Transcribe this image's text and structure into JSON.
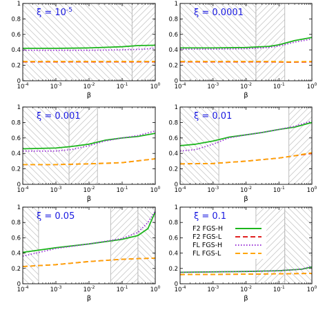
{
  "chart_data": [
    {
      "type": "line",
      "annotation": "ξ = 10",
      "annotation_exp": "-5",
      "xlabel": "β",
      "xscale": "log",
      "xlim": [
        0.0001,
        1
      ],
      "ylim": [
        0,
        1
      ],
      "x_ticks": [
        {
          "base": "10",
          "exp": "-4"
        },
        {
          "base": "10",
          "exp": "-3"
        },
        {
          "base": "10",
          "exp": "-2"
        },
        {
          "base": "10",
          "exp": "-1"
        },
        {
          "base": "10",
          "exp": "0"
        }
      ],
      "y_ticks": [
        "0",
        "0.2",
        "0.4",
        "0.6",
        "0.8",
        "1"
      ],
      "hatched_regions": [
        {
          "from": 0.0001,
          "to": 0.2,
          "direction": "backslash"
        },
        {
          "from": 0.2,
          "to": 1,
          "direction": "slash"
        }
      ],
      "series": [
        {
          "name": "F2 FGS-H",
          "color": "#1cb51c",
          "style": "solid",
          "x": [
            0.0001,
            0.001,
            0.01,
            0.1,
            0.3,
            1
          ],
          "y": [
            0.42,
            0.42,
            0.425,
            0.44,
            0.455,
            0.46
          ]
        },
        {
          "name": "F2 FGS-L",
          "color": "#e02020",
          "style": "dashed",
          "x": [
            0.0001,
            0.01,
            1
          ],
          "y": [
            0.245,
            0.245,
            0.245
          ]
        },
        {
          "name": "FL FGS-H",
          "color": "#9a33d6",
          "style": "dotted",
          "x": [
            0.0001,
            0.01,
            0.1,
            0.5,
            1
          ],
          "y": [
            0.395,
            0.395,
            0.4,
            0.41,
            0.425
          ]
        },
        {
          "name": "FL FGS-L",
          "color": "#ffa500",
          "style": "dashed",
          "x": [
            0.0001,
            0.01,
            1
          ],
          "y": [
            0.25,
            0.25,
            0.25
          ]
        }
      ]
    },
    {
      "type": "line",
      "annotation": "ξ = 0.0001",
      "xlabel": "β",
      "xscale": "log",
      "xlim": [
        0.0001,
        1
      ],
      "ylim": [
        0,
        1
      ],
      "x_ticks": [
        {
          "base": "10",
          "exp": "-4"
        },
        {
          "base": "10",
          "exp": "-3"
        },
        {
          "base": "10",
          "exp": "-2"
        },
        {
          "base": "10",
          "exp": "-1"
        },
        {
          "base": "10",
          "exp": "0"
        }
      ],
      "y_ticks": [
        "0",
        "0.2",
        "0.4",
        "0.6",
        "0.8",
        "1"
      ],
      "hatched_regions": [
        {
          "from": 0.0001,
          "to": 0.02,
          "direction": "backslash"
        },
        {
          "from": 0.02,
          "to": 0.15,
          "direction": "slash"
        }
      ],
      "series": [
        {
          "name": "F2 FGS-H",
          "color": "#1cb51c",
          "style": "solid",
          "x": [
            0.0001,
            0.001,
            0.01,
            0.05,
            0.1,
            0.3,
            1
          ],
          "y": [
            0.425,
            0.425,
            0.43,
            0.445,
            0.465,
            0.52,
            0.56
          ]
        },
        {
          "name": "F2 FGS-L",
          "color": "#e02020",
          "style": "dashed",
          "x": [
            0.0001,
            0.05,
            0.2,
            1
          ],
          "y": [
            0.245,
            0.245,
            0.24,
            0.245
          ]
        },
        {
          "name": "FL FGS-H",
          "color": "#9a33d6",
          "style": "dotted",
          "x": [
            0.0001,
            0.001,
            0.01,
            0.05,
            0.1,
            0.3,
            1
          ],
          "y": [
            0.41,
            0.41,
            0.415,
            0.43,
            0.45,
            0.5,
            0.54
          ]
        },
        {
          "name": "FL FGS-L",
          "color": "#ffa500",
          "style": "dashed",
          "x": [
            0.0001,
            0.05,
            0.2,
            1
          ],
          "y": [
            0.25,
            0.25,
            0.245,
            0.25
          ]
        }
      ]
    },
    {
      "type": "line",
      "annotation": "ξ = 0.001",
      "xlabel": "β",
      "xscale": "log",
      "xlim": [
        0.0001,
        1
      ],
      "ylim": [
        0,
        1
      ],
      "x_ticks": [
        {
          "base": "10",
          "exp": "-4"
        },
        {
          "base": "10",
          "exp": "-3"
        },
        {
          "base": "10",
          "exp": "-2"
        },
        {
          "base": "10",
          "exp": "-1"
        },
        {
          "base": "10",
          "exp": "0"
        }
      ],
      "y_ticks": [
        "0",
        "0.2",
        "0.4",
        "0.6",
        "0.8",
        "1"
      ],
      "hatched_regions": [
        {
          "from": 0.0001,
          "to": 0.0025,
          "direction": "backslash"
        },
        {
          "from": 0.0025,
          "to": 0.018,
          "direction": "slash"
        }
      ],
      "series": [
        {
          "name": "F2 FGS-H",
          "color": "#1cb51c",
          "style": "solid",
          "x": [
            0.0001,
            0.001,
            0.003,
            0.01,
            0.03,
            0.1,
            0.3,
            1
          ],
          "y": [
            0.46,
            0.47,
            0.49,
            0.52,
            0.57,
            0.6,
            0.62,
            0.66
          ]
        },
        {
          "name": "F2 FGS-L",
          "color": "#e02020",
          "style": "dashed",
          "x": [
            0.0001,
            0.001,
            0.01,
            0.1,
            1
          ],
          "y": [
            0.255,
            0.255,
            0.265,
            0.28,
            0.33
          ]
        },
        {
          "name": "FL FGS-H",
          "color": "#9a33d6",
          "style": "dotted",
          "x": [
            0.0001,
            0.001,
            0.003,
            0.01,
            0.03,
            0.1,
            0.3,
            1
          ],
          "y": [
            0.43,
            0.43,
            0.45,
            0.5,
            0.56,
            0.6,
            0.63,
            0.69
          ]
        },
        {
          "name": "FL FGS-L",
          "color": "#ffa500",
          "style": "dashed",
          "x": [
            0.0001,
            0.001,
            0.01,
            0.1,
            1
          ],
          "y": [
            0.255,
            0.255,
            0.265,
            0.28,
            0.33
          ]
        }
      ]
    },
    {
      "type": "line",
      "annotation": "ξ = 0.01",
      "xlabel": "β",
      "xscale": "log",
      "xlim": [
        0.0001,
        1
      ],
      "ylim": [
        0,
        1
      ],
      "x_ticks": [
        {
          "base": "10",
          "exp": "-4"
        },
        {
          "base": "10",
          "exp": "-3"
        },
        {
          "base": "10",
          "exp": "-2"
        },
        {
          "base": "10",
          "exp": "-1"
        },
        {
          "base": "10",
          "exp": "0"
        }
      ],
      "y_ticks": [
        "0",
        "0.2",
        "0.4",
        "0.6",
        "0.8",
        "1"
      ],
      "hatched_regions": [
        {
          "from": 0.0001,
          "to": 0.0015,
          "direction": "backslash"
        },
        {
          "from": 0.2,
          "to": 1,
          "direction": "slash"
        }
      ],
      "series": [
        {
          "name": "F2 FGS-H",
          "color": "#1cb51c",
          "style": "solid",
          "x": [
            0.0001,
            0.0003,
            0.001,
            0.003,
            0.01,
            0.03,
            0.1,
            0.3,
            1
          ],
          "y": [
            0.5,
            0.52,
            0.56,
            0.61,
            0.64,
            0.67,
            0.71,
            0.74,
            0.8
          ]
        },
        {
          "name": "F2 FGS-L",
          "color": "#e02020",
          "style": "dashed",
          "x": [
            0.0001,
            0.001,
            0.01,
            0.1,
            0.3,
            1
          ],
          "y": [
            0.265,
            0.27,
            0.3,
            0.34,
            0.37,
            0.4
          ]
        },
        {
          "name": "FL FGS-H",
          "color": "#9a33d6",
          "style": "dotted",
          "x": [
            0.0001,
            0.0003,
            0.001,
            0.003,
            0.01,
            0.03,
            0.1,
            0.3,
            1
          ],
          "y": [
            0.43,
            0.45,
            0.52,
            0.6,
            0.64,
            0.67,
            0.71,
            0.75,
            0.82
          ]
        },
        {
          "name": "FL FGS-L",
          "color": "#ffa500",
          "style": "dashed",
          "x": [
            0.0001,
            0.001,
            0.01,
            0.1,
            0.3,
            1
          ],
          "y": [
            0.265,
            0.27,
            0.3,
            0.34,
            0.37,
            0.41
          ]
        }
      ]
    },
    {
      "type": "line",
      "annotation": "ξ = 0.05",
      "xlabel": "β",
      "xscale": "log",
      "xlim": [
        0.0001,
        1
      ],
      "ylim": [
        0,
        1
      ],
      "x_ticks": [
        {
          "base": "10",
          "exp": "-4"
        },
        {
          "base": "10",
          "exp": "-3"
        },
        {
          "base": "10",
          "exp": "-2"
        },
        {
          "base": "10",
          "exp": "-1"
        },
        {
          "base": "10",
          "exp": "0"
        }
      ],
      "y_ticks": [
        "0",
        "0.2",
        "0.4",
        "0.6",
        "0.8",
        "1"
      ],
      "hatched_regions": [
        {
          "from": 0.0001,
          "to": 0.0003,
          "direction": "backslash"
        },
        {
          "from": 0.045,
          "to": 0.3,
          "direction": "slash"
        },
        {
          "from": 0.3,
          "to": 1,
          "direction": "backslash"
        }
      ],
      "series": [
        {
          "name": "F2 FGS-H",
          "color": "#1cb51c",
          "style": "solid",
          "x": [
            0.0001,
            0.001,
            0.01,
            0.1,
            0.3,
            0.6,
            1
          ],
          "y": [
            0.41,
            0.47,
            0.52,
            0.58,
            0.63,
            0.72,
            0.94
          ]
        },
        {
          "name": "F2 FGS-L",
          "color": "#e02020",
          "style": "dashed",
          "x": [
            0.0001,
            0.001,
            0.01,
            0.1,
            1
          ],
          "y": [
            0.225,
            0.25,
            0.29,
            0.32,
            0.335
          ]
        },
        {
          "name": "FL FGS-H",
          "color": "#9a33d6",
          "style": "dotted",
          "x": [
            0.0001,
            0.001,
            0.01,
            0.1,
            0.3,
            0.6,
            1
          ],
          "y": [
            0.36,
            0.46,
            0.52,
            0.59,
            0.67,
            0.8,
            0.95
          ]
        },
        {
          "name": "FL FGS-L",
          "color": "#ffa500",
          "style": "dashed",
          "x": [
            0.0001,
            0.001,
            0.01,
            0.1,
            1
          ],
          "y": [
            0.225,
            0.25,
            0.29,
            0.32,
            0.335
          ]
        }
      ]
    },
    {
      "type": "line",
      "annotation": "ξ = 0.1",
      "xlabel": "β",
      "xscale": "log",
      "xlim": [
        0.0001,
        1
      ],
      "ylim": [
        0,
        1
      ],
      "x_ticks": [
        {
          "base": "10",
          "exp": "-4"
        },
        {
          "base": "10",
          "exp": "-3"
        },
        {
          "base": "10",
          "exp": "-2"
        },
        {
          "base": "10",
          "exp": "-1"
        },
        {
          "base": "10",
          "exp": "0"
        }
      ],
      "y_ticks": [
        "0",
        "0.2",
        "0.4",
        "0.6",
        "0.8",
        "1"
      ],
      "legend_position": "center",
      "hatched_regions": [
        {
          "from": 0.02,
          "to": 0.15,
          "direction": "slash"
        },
        {
          "from": 0.15,
          "to": 1,
          "direction": "backslash"
        }
      ],
      "series": [
        {
          "name": "F2 FGS-H",
          "color": "#1cb51c",
          "style": "solid",
          "x": [
            0.0001,
            0.01,
            0.1,
            0.5,
            1
          ],
          "y": [
            0.15,
            0.16,
            0.17,
            0.19,
            0.22
          ]
        },
        {
          "name": "F2 FGS-L",
          "color": "#e02020",
          "style": "dashed",
          "x": [
            0.0001,
            0.01,
            0.1,
            1
          ],
          "y": [
            0.12,
            0.125,
            0.13,
            0.135
          ]
        },
        {
          "name": "FL FGS-H",
          "color": "#9a33d6",
          "style": "dotted",
          "x": [
            0.0001,
            0.01,
            0.1,
            0.5,
            1
          ],
          "y": [
            0.15,
            0.16,
            0.17,
            0.19,
            0.23
          ]
        },
        {
          "name": "FL FGS-L",
          "color": "#ffa500",
          "style": "dashed",
          "x": [
            0.0001,
            0.01,
            0.1,
            1
          ],
          "y": [
            0.12,
            0.125,
            0.13,
            0.135
          ]
        }
      ]
    }
  ]
}
